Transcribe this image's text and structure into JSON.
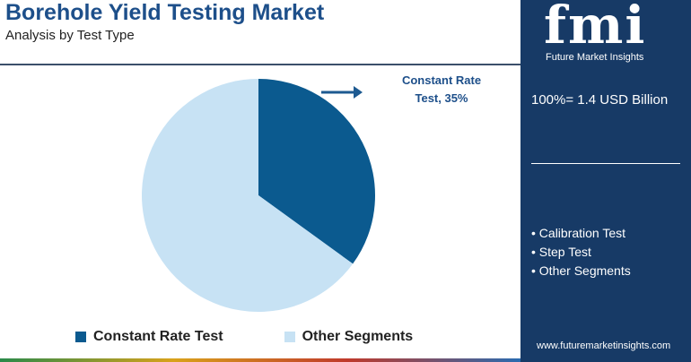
{
  "chart_data": {
    "type": "pie",
    "title": "Borehole Yield Testing Market",
    "subtitle": "Analysis by Test Type",
    "categories": [
      "Constant Rate Test",
      "Other Segments"
    ],
    "values": [
      35,
      65
    ],
    "value_labels": [
      "Constant Rate Test, 35%",
      null
    ],
    "colors": [
      "#0b5a8f",
      "#c7e2f4"
    ],
    "legend": "bottom"
  },
  "side_panel": {
    "logo": "fmi",
    "logo_caption": "Future Market Insights",
    "total": "100%= 1.4 USD Billion",
    "segments": [
      "Calibration Test",
      "Step Test",
      "Other Segments"
    ],
    "website": "www.futuremarketinsights.com"
  }
}
